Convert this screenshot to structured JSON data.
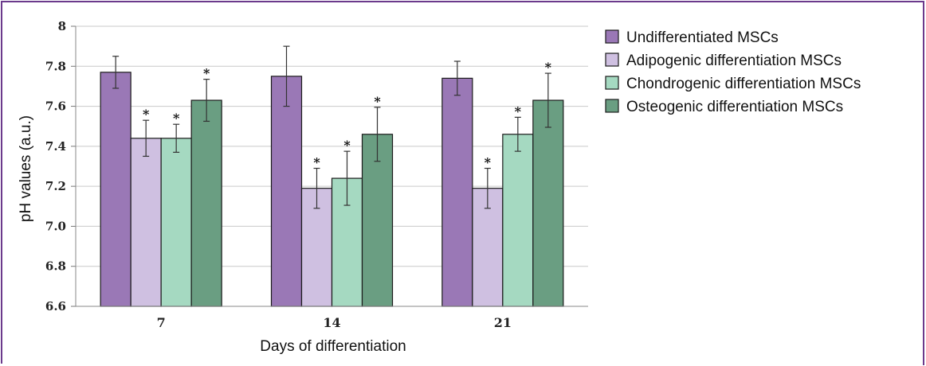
{
  "chart_data": {
    "type": "bar",
    "xlabel": "Days of differentiation",
    "ylabel": "pH values (a.u.)",
    "ylim": [
      6.6,
      8.0
    ],
    "yticks": [
      "6.6",
      "6.8",
      "7.0",
      "7.2",
      "7.4",
      "7.6",
      "7.8",
      "8"
    ],
    "grid": true,
    "legend_position": "right",
    "categories": [
      "7",
      "14",
      "21"
    ],
    "series": [
      {
        "name": "Undifferentiated MSCs",
        "color": "#9a78b6",
        "values": [
          7.77,
          7.75,
          7.74
        ],
        "errors": [
          0.08,
          0.15,
          0.085
        ],
        "significant": [
          false,
          false,
          false
        ]
      },
      {
        "name": "Adipogenic differentiation MSCs",
        "color": "#cfc0e1",
        "values": [
          7.44,
          7.19,
          7.19
        ],
        "errors": [
          0.09,
          0.1,
          0.1
        ],
        "significant": [
          true,
          true,
          true
        ]
      },
      {
        "name": "Chondrogenic differentiation MSCs",
        "color": "#a5d9c1",
        "values": [
          7.44,
          7.24,
          7.46
        ],
        "errors": [
          0.07,
          0.135,
          0.085
        ],
        "significant": [
          true,
          true,
          true
        ]
      },
      {
        "name": "Osteogenic differentiation MSCs",
        "color": "#6a9e82",
        "values": [
          7.63,
          7.46,
          7.63
        ],
        "errors": [
          0.105,
          0.135,
          0.135
        ],
        "significant": [
          true,
          true,
          true
        ]
      }
    ],
    "significance_marker": "*"
  }
}
